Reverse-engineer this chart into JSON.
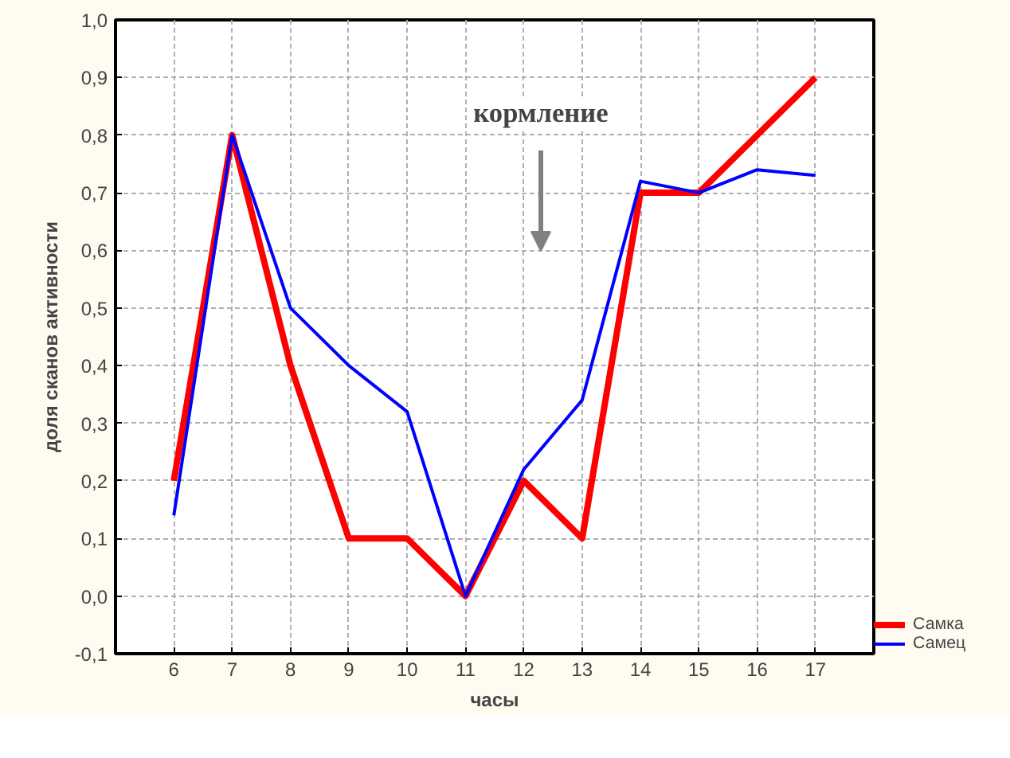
{
  "chart_data": {
    "type": "line",
    "xlabel": "часы",
    "ylabel": "доля сканов активности",
    "x": [
      6,
      7,
      8,
      9,
      10,
      11,
      12,
      13,
      14,
      15,
      16,
      17
    ],
    "series": [
      {
        "name": "Самка",
        "color": "#ff0000",
        "values": [
          0.2,
          0.8,
          0.4,
          0.1,
          0.1,
          0.0,
          0.2,
          0.1,
          0.7,
          0.7,
          0.8,
          0.9
        ]
      },
      {
        "name": "Самец",
        "color": "#0000ff",
        "values": [
          0.14,
          0.8,
          0.5,
          0.4,
          0.32,
          0.0,
          0.22,
          0.34,
          0.72,
          0.7,
          0.74,
          0.73
        ]
      }
    ],
    "xlim": [
      5,
      18
    ],
    "xticks": [
      6,
      7,
      8,
      9,
      10,
      11,
      12,
      13,
      14,
      15,
      16,
      17
    ],
    "ylim": [
      -0.1,
      1.0
    ],
    "yticks": [
      {
        "value": -0.1,
        "label": "-0,1"
      },
      {
        "value": 0.0,
        "label": "0,0"
      },
      {
        "value": 0.1,
        "label": "0,1"
      },
      {
        "value": 0.2,
        "label": "0,2"
      },
      {
        "value": 0.3,
        "label": "0,3"
      },
      {
        "value": 0.4,
        "label": "0,4"
      },
      {
        "value": 0.5,
        "label": "0,5"
      },
      {
        "value": 0.6,
        "label": "0,6"
      },
      {
        "value": 0.7,
        "label": "0,7"
      },
      {
        "value": 0.8,
        "label": "0,8"
      },
      {
        "value": 0.9,
        "label": "0,9"
      },
      {
        "value": 1.0,
        "label": "1,0"
      }
    ],
    "annotations": [
      "кормление"
    ],
    "grid": true,
    "legend": "bottom right",
    "line_style": "solid"
  }
}
